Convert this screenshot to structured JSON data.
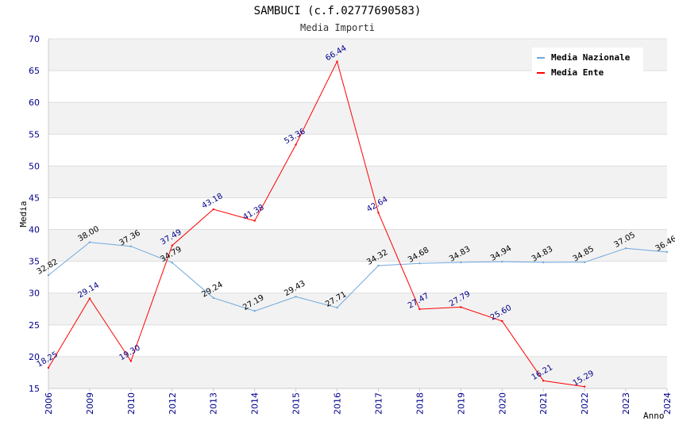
{
  "chart_data": {
    "type": "line",
    "title": "SAMBUCI (c.f.02777690583)",
    "subtitle": "Media Importi",
    "xlabel": "Anno",
    "ylabel": "Media",
    "ylim": [
      15,
      70
    ],
    "yticks": [
      15,
      20,
      25,
      30,
      35,
      40,
      45,
      50,
      55,
      60,
      65,
      70
    ],
    "categories": [
      "2006",
      "2009",
      "2010",
      "2012",
      "2013",
      "2014",
      "2015",
      "2016",
      "2017",
      "2018",
      "2019",
      "2020",
      "2021",
      "2022",
      "2023",
      "2024"
    ],
    "legend_position": "top-right",
    "series": [
      {
        "name": "Media Nazionale",
        "color": "#6fa8dc",
        "values": [
          32.82,
          38.0,
          37.36,
          34.79,
          29.24,
          27.19,
          29.43,
          27.71,
          34.32,
          34.68,
          34.83,
          34.94,
          34.83,
          34.85,
          37.05,
          36.46
        ],
        "labels": [
          "32.82",
          "38.00",
          "37.36",
          "34.79",
          "29.24",
          "27.19",
          "29.43",
          "27.71",
          "34.32",
          "34.68",
          "34.83",
          "34.94",
          "34.83",
          "34.85",
          "37.05",
          "36.46"
        ]
      },
      {
        "name": "Media Ente",
        "color": "#ff0000",
        "values": [
          18.25,
          29.14,
          19.3,
          37.49,
          43.18,
          41.38,
          53.36,
          66.44,
          42.64,
          27.47,
          27.79,
          25.6,
          16.21,
          15.29,
          null,
          null
        ],
        "labels": [
          "18.25",
          "29.14",
          "19.30",
          "37.49",
          "43.18",
          "41.38",
          "53.36",
          "66.44",
          "42.64",
          "27.47",
          "27.79",
          "25.60",
          "16.21",
          "15.29",
          "",
          ""
        ]
      }
    ]
  }
}
